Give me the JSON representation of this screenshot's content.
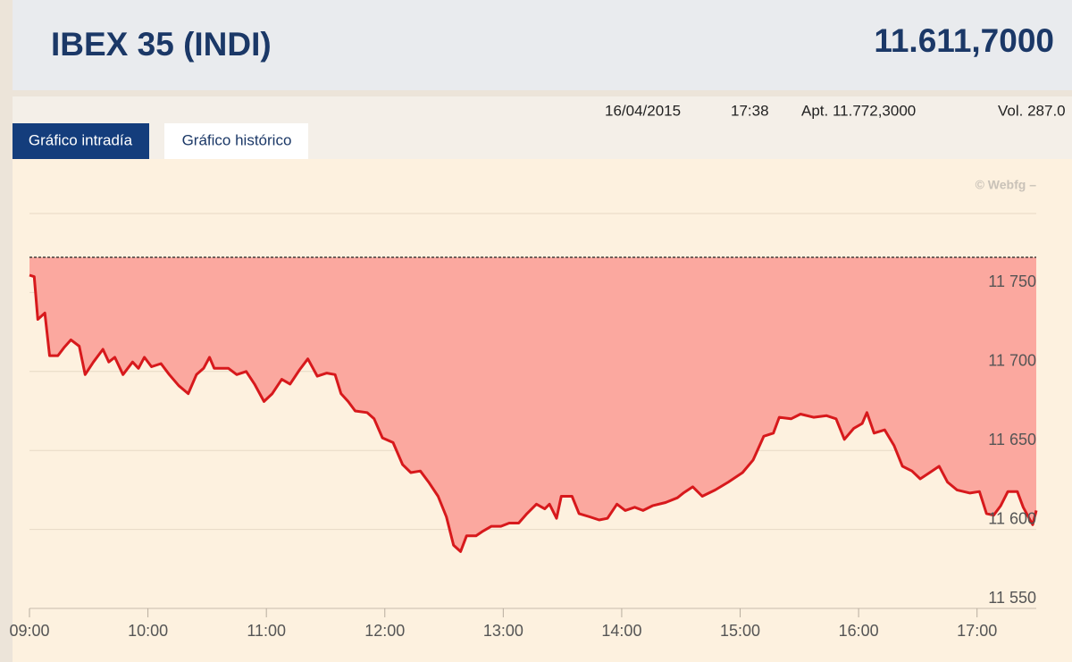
{
  "header": {
    "title": "IBEX 35 (INDI)",
    "value": "11.611,7000"
  },
  "info": {
    "date": "16/04/2015",
    "time": "17:38",
    "previous": "Apt. 11.772,3000",
    "volume": "Vol. 287.0"
  },
  "tabs": [
    "Gráfico intradía",
    "Gráfico histórico"
  ],
  "watermark": "© Webfg –",
  "chart_data": {
    "type": "area-line",
    "x": [
      9,
      9.04,
      9.07,
      9.13,
      9.17,
      9.24,
      9.29,
      9.35,
      9.42,
      9.47,
      9.54,
      9.62,
      9.67,
      9.72,
      9.79,
      9.87,
      9.92,
      9.97,
      10.03,
      10.11,
      10.18,
      10.26,
      10.34,
      10.41,
      10.47,
      10.52,
      10.56,
      10.68,
      10.75,
      10.83,
      10.9,
      10.98,
      11.05,
      11.13,
      11.2,
      11.28,
      11.35,
      11.43,
      11.51,
      11.58,
      11.63,
      11.69,
      11.75,
      11.85,
      11.91,
      11.98,
      12.07,
      12.15,
      12.22,
      12.3,
      12.37,
      12.45,
      12.52,
      12.58,
      12.64,
      12.69,
      12.77,
      12.83,
      12.9,
      12.98,
      13.05,
      13.13,
      13.2,
      13.28,
      13.35,
      13.39,
      13.45,
      13.49,
      13.58,
      13.64,
      13.73,
      13.81,
      13.88,
      13.96,
      14.03,
      14.11,
      14.18,
      14.26,
      14.37,
      14.47,
      14.52,
      14.6,
      14.68,
      14.79,
      14.9,
      15.02,
      15.11,
      15.2,
      15.28,
      15.33,
      15.43,
      15.51,
      15.62,
      15.73,
      15.81,
      15.88,
      15.96,
      16.03,
      16.07,
      16.13,
      16.22,
      16.3,
      16.37,
      16.45,
      16.52,
      16.6,
      16.68,
      16.75,
      16.83,
      16.94,
      17.02,
      17.08,
      17.14,
      17.2,
      17.26,
      17.34,
      17.39,
      17.47,
      17.5
    ],
    "values": [
      11761,
      11760,
      11733,
      11737,
      11710,
      11710,
      11715,
      11720,
      11716,
      11698,
      11706,
      11714,
      11706,
      11709,
      11698,
      11706,
      11702,
      11709,
      11703,
      11705,
      11698,
      11691,
      11686,
      11698,
      11702,
      11709,
      11702,
      11702,
      11698,
      11700,
      11692,
      11681,
      11686,
      11695,
      11692,
      11701,
      11708,
      11697,
      11699,
      11698,
      11686,
      11681,
      11675,
      11674,
      11670,
      11658,
      11655,
      11641,
      11636,
      11637,
      11630,
      11621,
      11608,
      11590,
      11586,
      11596,
      11596,
      11599,
      11602,
      11602,
      11604,
      11604,
      11610,
      11616,
      11613,
      11616,
      11607,
      11621,
      11621,
      11610,
      11608,
      11606,
      11607,
      11616,
      11612,
      11614,
      11612,
      11615,
      11617,
      11620,
      11623,
      11627,
      11621,
      11625,
      11630,
      11636,
      11644,
      11659,
      11661,
      11671,
      11670,
      11673,
      11671,
      11672,
      11670,
      11657,
      11664,
      11667,
      11674,
      11661,
      11663,
      11653,
      11640,
      11637,
      11632,
      11636,
      11640,
      11630,
      11625,
      11623,
      11624,
      11610,
      11609,
      11615,
      11624,
      11624,
      11614,
      11603,
      11612
    ],
    "reference": 11772.3,
    "color": "#d7191c",
    "fill_color": "#fba89f",
    "xlim": [
      9,
      17.5
    ],
    "xticks": [
      {
        "value": 9,
        "label": "09:00"
      },
      {
        "value": 10,
        "label": "10:00"
      },
      {
        "value": 11,
        "label": "11:00"
      },
      {
        "value": 12,
        "label": "12:00"
      },
      {
        "value": 13,
        "label": "13:00"
      },
      {
        "value": 14,
        "label": "14:00"
      },
      {
        "value": 15,
        "label": "15:00"
      },
      {
        "value": 16,
        "label": "16:00"
      },
      {
        "value": 17,
        "label": "17:00"
      }
    ],
    "ylim": [
      11550,
      11800
    ],
    "yticks": [
      {
        "value": 11550,
        "label": "11 550"
      },
      {
        "value": 11600,
        "label": "11 600"
      },
      {
        "value": 11650,
        "label": "11 650"
      },
      {
        "value": 11700,
        "label": "11 700"
      },
      {
        "value": 11750,
        "label": "11 750"
      }
    ],
    "grid": true
  }
}
